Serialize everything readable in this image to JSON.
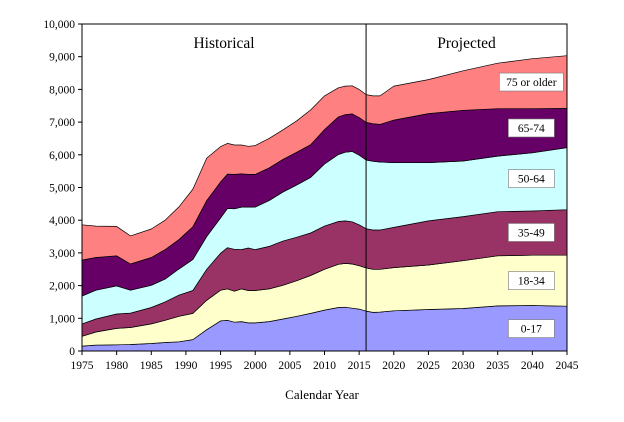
{
  "chart_data": {
    "type": "area",
    "stacked": true,
    "xlabel": "Calendar Year",
    "ylabel": "",
    "title": "",
    "xlim": [
      1975,
      2045
    ],
    "ylim": [
      0,
      10000
    ],
    "x_ticks": [
      1975,
      1980,
      1985,
      1990,
      1995,
      2000,
      2005,
      2010,
      2015,
      2020,
      2025,
      2030,
      2035,
      2040,
      2045
    ],
    "y_ticks": [
      0,
      1000,
      2000,
      3000,
      4000,
      5000,
      6000,
      7000,
      8000,
      9000,
      10000
    ],
    "y_tick_labels": [
      "0",
      "1,000",
      "2,000",
      "3,000",
      "4,000",
      "5,000",
      "6,000",
      "7,000",
      "8,000",
      "9,000",
      "10,000"
    ],
    "grid": false,
    "divider_x": 2016,
    "regions": [
      {
        "label": "Historical",
        "x": 1995.5
      },
      {
        "label": "Projected",
        "x": 2030.5
      }
    ],
    "x": [
      1975,
      1977,
      1980,
      1982,
      1985,
      1987,
      1989,
      1991,
      1993,
      1995,
      1996,
      1997,
      1998,
      1999,
      2000,
      2002,
      2004,
      2006,
      2008,
      2010,
      2012,
      2013,
      2014,
      2015,
      2016,
      2017,
      2018,
      2020,
      2025,
      2030,
      2035,
      2040,
      2045
    ],
    "series": [
      {
        "name": "0-17",
        "color": "#9999ff",
        "values": [
          150,
          180,
          190,
          200,
          230,
          260,
          280,
          350,
          650,
          920,
          940,
          880,
          900,
          860,
          860,
          900,
          980,
          1060,
          1150,
          1250,
          1330,
          1340,
          1310,
          1280,
          1220,
          1180,
          1190,
          1230,
          1270,
          1300,
          1380,
          1390,
          1370
        ]
      },
      {
        "name": "18-34",
        "color": "#ffffcc",
        "values": [
          300,
          400,
          500,
          520,
          600,
          680,
          780,
          800,
          900,
          940,
          960,
          950,
          1000,
          990,
          990,
          1000,
          1030,
          1090,
          1160,
          1250,
          1320,
          1340,
          1350,
          1330,
          1320,
          1320,
          1310,
          1320,
          1360,
          1460,
          1530,
          1540,
          1560
        ]
      },
      {
        "name": "35-49",
        "color": "#993366",
        "values": [
          380,
          400,
          440,
          440,
          500,
          560,
          650,
          700,
          950,
          1130,
          1260,
          1280,
          1200,
          1300,
          1250,
          1300,
          1350,
          1330,
          1300,
          1320,
          1310,
          1300,
          1290,
          1250,
          1200,
          1200,
          1200,
          1230,
          1350,
          1350,
          1350,
          1350,
          1390
        ]
      },
      {
        "name": "50-64",
        "color": "#ccffff",
        "values": [
          850,
          880,
          860,
          700,
          680,
          700,
          800,
          950,
          1000,
          1080,
          1200,
          1240,
          1300,
          1250,
          1300,
          1400,
          1500,
          1600,
          1700,
          1900,
          2050,
          2100,
          2150,
          2130,
          2100,
          2100,
          2080,
          1980,
          1780,
          1700,
          1700,
          1780,
          1900
        ]
      },
      {
        "name": "65-74",
        "color": "#660066",
        "values": [
          1100,
          1000,
          920,
          800,
          850,
          900,
          900,
          1000,
          1100,
          1100,
          1050,
          1050,
          1020,
          1000,
          1000,
          1000,
          1000,
          1000,
          1000,
          1050,
          1150,
          1150,
          1150,
          1150,
          1150,
          1150,
          1150,
          1300,
          1500,
          1550,
          1450,
          1350,
          1200
        ]
      },
      {
        "name": "75 or older",
        "color": "#ff8080",
        "values": [
          1080,
          960,
          900,
          860,
          870,
          900,
          1000,
          1150,
          1300,
          1080,
          940,
          900,
          880,
          860,
          880,
          900,
          900,
          960,
          1060,
          1030,
          890,
          870,
          860,
          860,
          850,
          850,
          870,
          1040,
          1040,
          1210,
          1390,
          1530,
          1610
        ]
      }
    ]
  }
}
